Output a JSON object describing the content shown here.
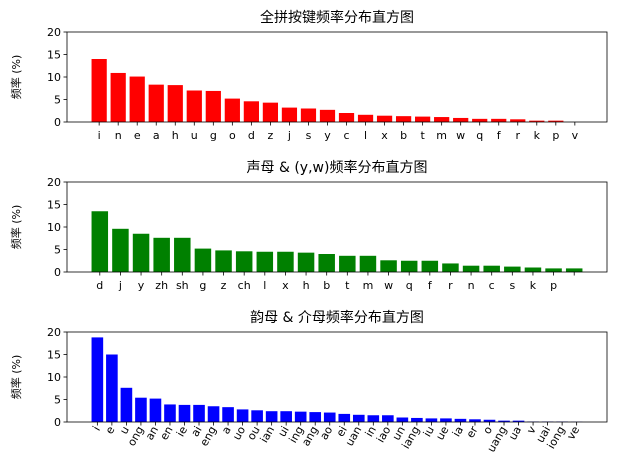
{
  "chart_data": [
    {
      "type": "bar",
      "title": "全拼按键频率分布直方图",
      "y_label": "频率 (%)",
      "color": "#ff0000",
      "categories": [
        "i",
        "n",
        "e",
        "a",
        "h",
        "u",
        "g",
        "o",
        "d",
        "z",
        "j",
        "s",
        "y",
        "c",
        "l",
        "x",
        "b",
        "t",
        "m",
        "w",
        "q",
        "f",
        "r",
        "k",
        "p",
        "v"
      ],
      "values": [
        14.0,
        10.9,
        10.1,
        8.3,
        8.2,
        7.0,
        6.9,
        5.2,
        4.6,
        4.3,
        3.2,
        3.0,
        2.7,
        2.0,
        1.6,
        1.4,
        1.3,
        1.2,
        1.1,
        0.9,
        0.7,
        0.7,
        0.6,
        0.3,
        0.3,
        0.0
      ],
      "ylim": [
        0,
        20
      ],
      "yticks": [
        0,
        5,
        10,
        15,
        20
      ]
    },
    {
      "type": "bar",
      "title": "声母 & (y,w)频率分布直方图",
      "y_label": "频率 (%)",
      "color": "#008000",
      "categories": [
        "d",
        "j",
        "y",
        "zh",
        "sh",
        "g",
        "z",
        "ch",
        "l",
        "x",
        "h",
        "b",
        "t",
        "m",
        "w",
        "q",
        "f",
        "r",
        "n",
        "c",
        "s",
        "k",
        "p",
        null
      ],
      "values": [
        13.5,
        9.6,
        8.5,
        7.6,
        7.6,
        5.2,
        4.8,
        4.6,
        4.5,
        4.5,
        4.3,
        4.0,
        3.6,
        3.6,
        2.6,
        2.5,
        2.5,
        1.9,
        1.4,
        1.4,
        1.2,
        1.0,
        0.8,
        0.8
      ],
      "ylim": [
        0,
        20
      ],
      "yticks": [
        0,
        5,
        10,
        15,
        20
      ]
    },
    {
      "type": "bar",
      "title": "韵母 & 介母频率分布直方图",
      "y_label": "频率 (%)",
      "color": "#0000ff",
      "categories": [
        "i",
        "e",
        "u",
        "ong",
        "an",
        "en",
        "ie",
        "ai",
        "eng",
        "a",
        "uo",
        "ou",
        "ian",
        "ui",
        "ing",
        "ang",
        "ao",
        "ei",
        "uan",
        "in",
        "iao",
        "un",
        "iang",
        "iu",
        "ue",
        "ia",
        "er",
        "o",
        "uang",
        "ua",
        "v",
        "uai",
        "iong",
        "ve"
      ],
      "values": [
        18.8,
        15.0,
        7.6,
        5.4,
        5.2,
        3.9,
        3.8,
        3.8,
        3.5,
        3.3,
        2.8,
        2.6,
        2.4,
        2.4,
        2.3,
        2.2,
        2.1,
        1.8,
        1.6,
        1.5,
        1.5,
        1.0,
        0.9,
        0.8,
        0.8,
        0.7,
        0.6,
        0.5,
        0.3,
        0.3,
        0.1,
        0.1,
        0.1,
        0.05
      ],
      "ylim": [
        0,
        20
      ],
      "yticks": [
        0,
        5,
        10,
        15,
        20
      ]
    }
  ]
}
